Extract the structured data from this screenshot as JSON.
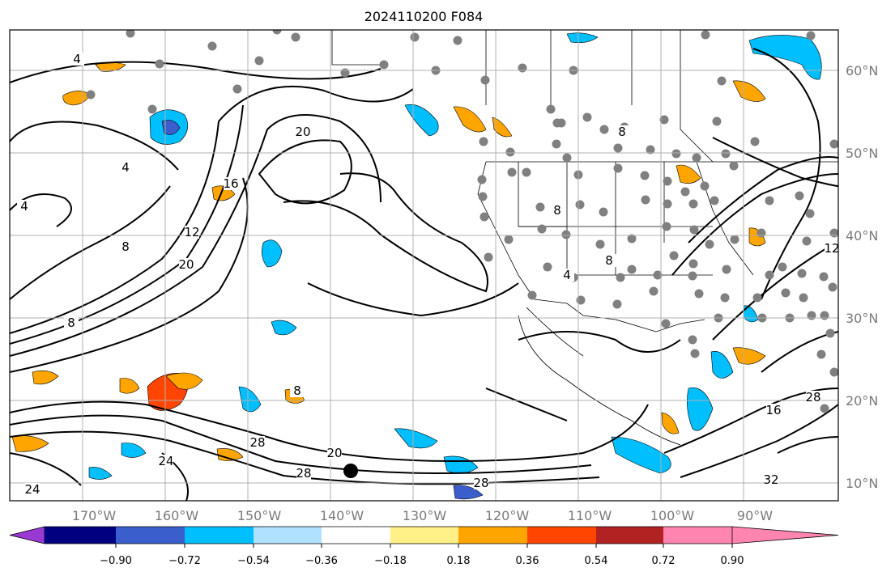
{
  "title": "2024110200 F084",
  "map": {
    "lon_labels": [
      "170°W",
      "160°W",
      "150°W",
      "140°W",
      "130°W",
      "120°W",
      "110°W",
      "100°W",
      "90°W"
    ],
    "lat_labels": [
      "60°N",
      "50°N",
      "40°N",
      "30°N",
      "20°N",
      "10°N"
    ],
    "contour_labels": [
      "4",
      "4",
      "4",
      "8",
      "8",
      "12",
      "16",
      "20",
      "20",
      "20",
      "28",
      "28",
      "28",
      "24",
      "24",
      "8",
      "8",
      "4",
      "8",
      "12",
      "32",
      "28",
      "16",
      "8"
    ]
  },
  "colorbar": {
    "colors": [
      "#9a38d4",
      "#000080",
      "#3a5fcd",
      "#00bfff",
      "#b0e2ff",
      "#ffffff",
      "#fff087",
      "#ffa500",
      "#ff4500",
      "#b22222",
      "#ff85b0"
    ],
    "tick_labels": [
      "−0.90",
      "−0.72",
      "−0.54",
      "−0.36",
      "−0.18",
      "0.18",
      "0.36",
      "0.54",
      "0.72",
      "0.90"
    ]
  },
  "colors": {
    "contour": "#000000",
    "station": "#808080",
    "grid": "#b0b0b0",
    "border": "#000000"
  }
}
